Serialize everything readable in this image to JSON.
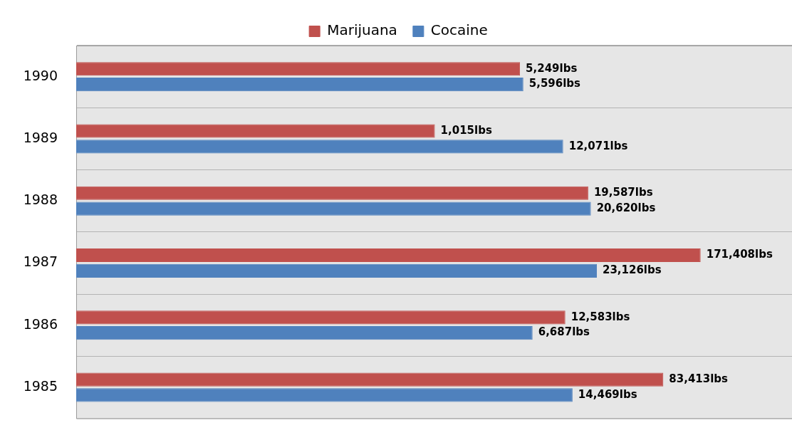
{
  "chart_data": {
    "type": "bar",
    "orientation": "horizontal",
    "log": "x",
    "xlim": [
      1,
      1000000
    ],
    "tick_labels": "y",
    "grid": "y",
    "legend": "top",
    "categories": [
      "1990",
      "1989",
      "1988",
      "1987",
      "1986",
      "1985"
    ],
    "series": [
      {
        "name": "Marijuana",
        "color": "#c0504d",
        "values": [
          5249,
          1015,
          19587,
          171408,
          12583,
          83413
        ],
        "value_labels": [
          "5,249lbs",
          "1,015lbs",
          "19,587lbs",
          "171,408lbs",
          "12,583lbs",
          "83,413lbs"
        ]
      },
      {
        "name": "Cocaine",
        "color": "#4f81bd",
        "values": [
          5596,
          12071,
          20620,
          23126,
          6687,
          14469
        ],
        "value_labels": [
          "5,596lbs",
          "12,071lbs",
          "20,620lbs",
          "23,126lbs",
          "6,687lbs",
          "14,469lbs"
        ]
      }
    ]
  }
}
